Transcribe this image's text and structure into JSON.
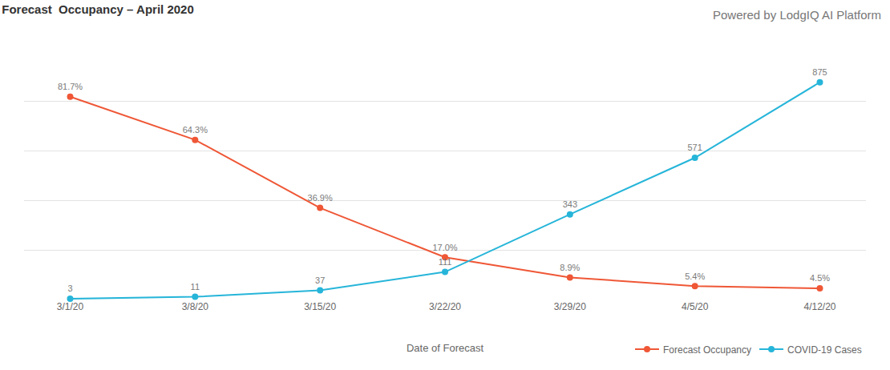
{
  "chart_data": {
    "type": "line",
    "title": "Forecast  Occupancy – April 2020",
    "annotations": [
      "Powered by LodgIQ AI Platform"
    ],
    "x_label": "Date of Forecast",
    "categories": [
      "3/1/20",
      "3/8/20",
      "3/15/20",
      "3/22/20",
      "3/29/20",
      "4/5/20",
      "4/12/20"
    ],
    "series": [
      {
        "name": "Forecast Occupancy",
        "color": "#ef5736",
        "marker": "circle",
        "values": [
          81.7,
          64.3,
          36.9,
          17.0,
          8.9,
          5.4,
          4.5
        ],
        "value_labels": [
          "81.7%",
          "64.3%",
          "36.9%",
          "17.0%",
          "8.9%",
          "5.4%",
          "4.5%"
        ]
      },
      {
        "name": "COVID-19 Cases",
        "color": "#26b5d9",
        "marker": "circle",
        "axis": "y2",
        "values": [
          3,
          11,
          37,
          111,
          343,
          571,
          875
        ]
      }
    ],
    "ylim": [
      0,
      100
    ],
    "yticks": [
      0,
      20,
      40,
      60,
      80,
      100
    ],
    "y2lim": [
      0,
      1000
    ],
    "y2ticks": [
      0,
      200,
      400,
      600,
      800,
      1000
    ],
    "grid": true,
    "legend": "bottom right",
    "data_labels": true,
    "tick_labels": "x"
  }
}
